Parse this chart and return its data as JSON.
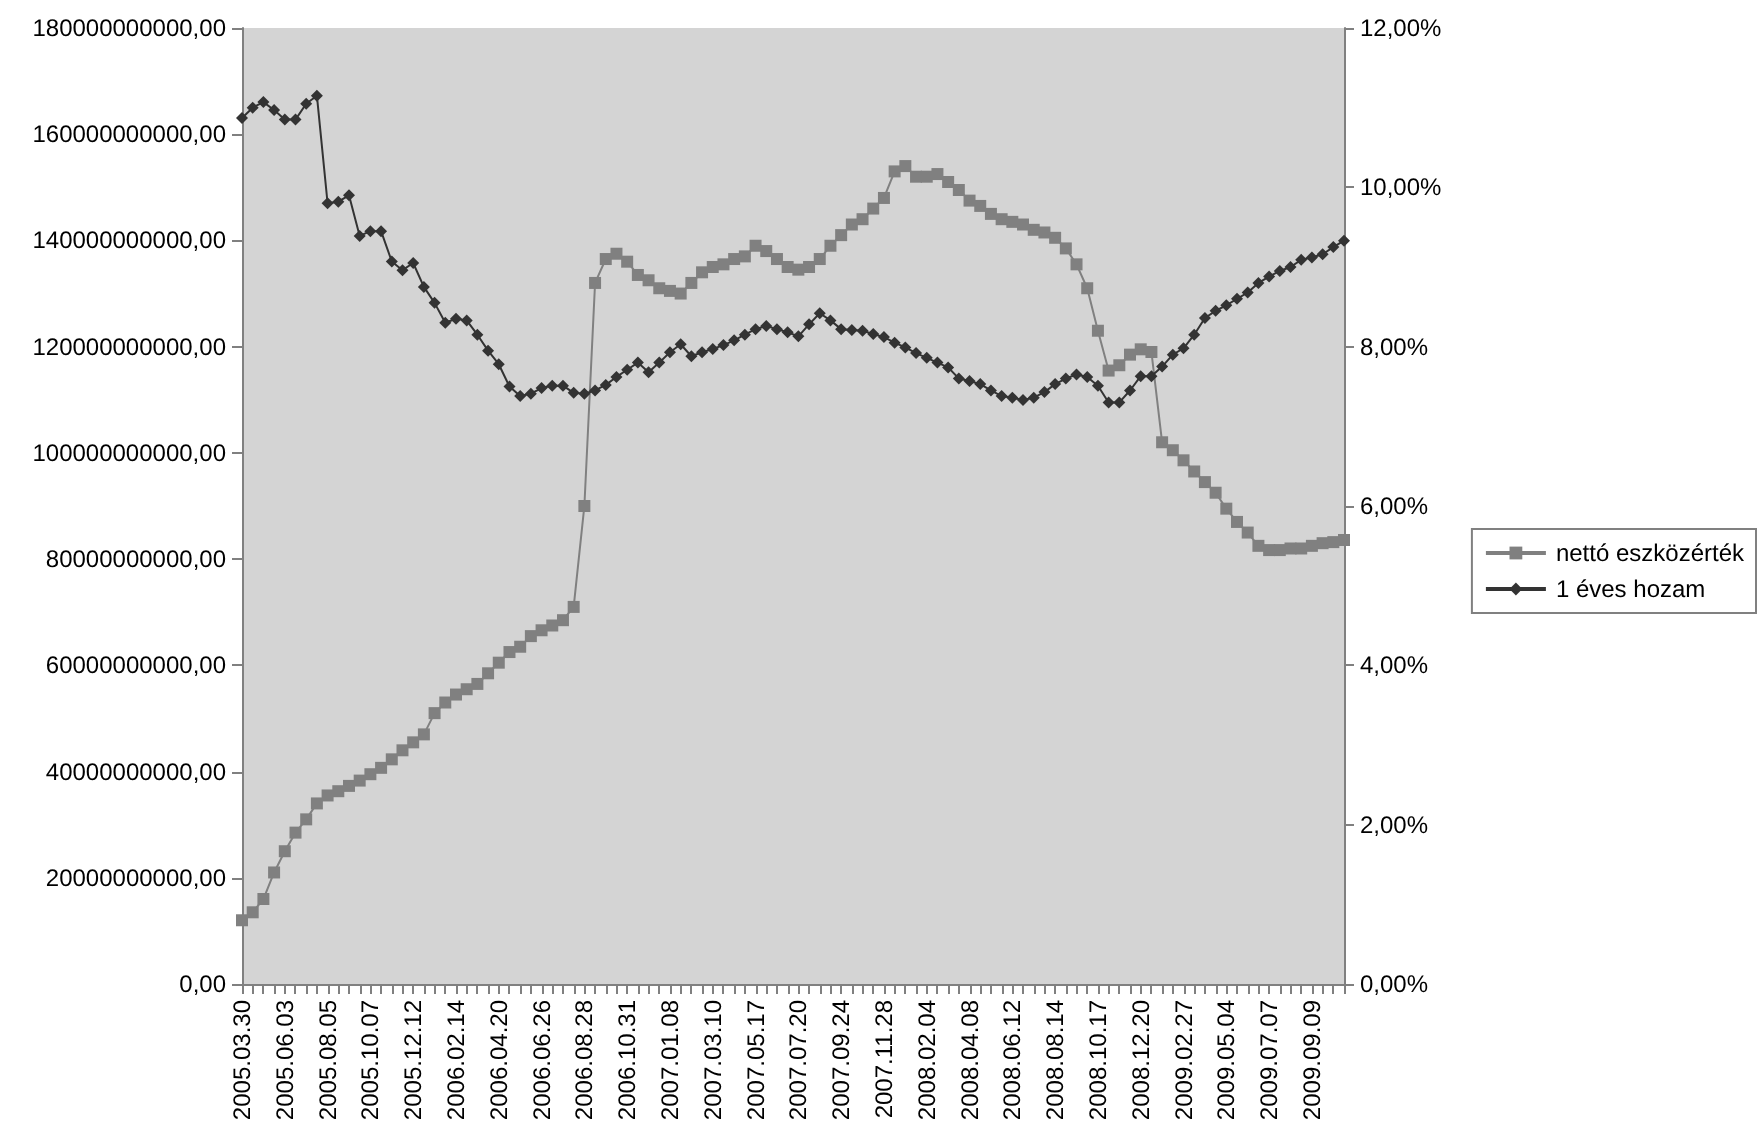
{
  "chart_data": {
    "type": "line",
    "categories": [
      "2005.03.30",
      null,
      null,
      null,
      "2005.06.03",
      null,
      null,
      null,
      "2005.08.05",
      null,
      null,
      null,
      "2005.10.07",
      null,
      null,
      null,
      "2005.12.12",
      null,
      null,
      null,
      "2006.02.14",
      null,
      null,
      null,
      "2006.04.20",
      null,
      null,
      null,
      "2006.06.26",
      null,
      null,
      null,
      "2006.08.28",
      null,
      null,
      null,
      "2006.10.31",
      null,
      null,
      null,
      "2007.01.08",
      null,
      null,
      null,
      "2007.03.10",
      null,
      null,
      null,
      "2007.05.17",
      null,
      null,
      null,
      "2007.07.20",
      null,
      null,
      null,
      "2007.09.24",
      null,
      null,
      null,
      "2007.11.28",
      null,
      null,
      null,
      "2008.02.04",
      null,
      null,
      null,
      "2008.04.08",
      null,
      null,
      null,
      "2008.06.12",
      null,
      null,
      null,
      "2008.08.14",
      null,
      null,
      null,
      "2008.10.17",
      null,
      null,
      null,
      "2008.12.20",
      null,
      null,
      null,
      "2009.02.27",
      null,
      null,
      null,
      "2009.05.04",
      null,
      null,
      null,
      "2009.07.07",
      null,
      null,
      null,
      "2009.09.09",
      null,
      null,
      null
    ],
    "series": [
      {
        "name": "nettó eszközérték",
        "color": "#808080",
        "marker": "square",
        "values": [
          12000000000,
          13500000000,
          16000000000,
          21000000000,
          25000000000,
          28500000000,
          31000000000,
          34000000000,
          35500000000,
          36300000000,
          37300000000,
          38300000000,
          39500000000,
          40700000000,
          42300000000,
          44000000000,
          45500000000,
          47000000000,
          51000000000,
          53000000000,
          54500000000,
          55500000000,
          56500000000,
          58500000000,
          60500000000,
          62500000000,
          63500000000,
          65500000000,
          66600000000,
          67500000000,
          68500000000,
          71000000000,
          90000000000,
          132000000000,
          136500000000,
          137500000000,
          136000000000,
          133500000000,
          132500000000,
          131000000000,
          130500000000,
          130000000000,
          132000000000,
          134000000000,
          135000000000,
          135500000000,
          136500000000,
          137000000000,
          139000000000,
          138000000000,
          136500000000,
          135000000000,
          134500000000,
          135000000000,
          136500000000,
          139000000000,
          141000000000,
          143000000000,
          144000000000,
          146000000000,
          148000000000,
          153000000000,
          154000000000,
          152000000000,
          152000000000,
          152500000000,
          151000000000,
          149500000000,
          147500000000,
          146500000000,
          145000000000,
          144000000000,
          143500000000,
          143000000000,
          142000000000,
          141500000000,
          140500000000,
          138500000000,
          135500000000,
          131000000000,
          123000000000,
          115500000000,
          116500000000,
          118500000000,
          119500000000,
          119000000000,
          102000000000,
          100500000000,
          98600000000,
          96500000000,
          94500000000,
          92500000000,
          89500000000,
          87000000000,
          85000000000,
          82500000000,
          81700000000,
          81700000000,
          82000000000,
          82000000000,
          82500000000,
          83000000000,
          83200000000,
          83600000000
        ]
      },
      {
        "name": "1 éves hozam",
        "color": "#333333",
        "marker": "diamond",
        "axis": "y2",
        "values": [
          10.87,
          11.0,
          11.07,
          10.97,
          10.85,
          10.85,
          11.05,
          11.15,
          9.8,
          9.82,
          9.9,
          9.39,
          9.45,
          9.45,
          9.07,
          8.96,
          9.05,
          8.75,
          8.55,
          8.3,
          8.35,
          8.33,
          8.15,
          7.95,
          7.78,
          7.5,
          7.38,
          7.41,
          7.48,
          7.51,
          7.51,
          7.42,
          7.41,
          7.45,
          7.52,
          7.62,
          7.71,
          7.8,
          7.68,
          7.8,
          7.93,
          8.03,
          7.88,
          7.93,
          7.97,
          8.02,
          8.08,
          8.15,
          8.22,
          8.26,
          8.22,
          8.18,
          8.13,
          8.28,
          8.42,
          8.33,
          8.22,
          8.21,
          8.2,
          8.16,
          8.12,
          8.05,
          7.99,
          7.92,
          7.86,
          7.8,
          7.74,
          7.6,
          7.57,
          7.53,
          7.45,
          7.38,
          7.36,
          7.33,
          7.36,
          7.43,
          7.53,
          7.6,
          7.65,
          7.62,
          7.51,
          7.3,
          7.3,
          7.45,
          7.63,
          7.63,
          7.75,
          7.9,
          7.98,
          8.15,
          8.36,
          8.45,
          8.52,
          8.6,
          8.68,
          8.8,
          8.88,
          8.95,
          9.0,
          9.09,
          9.12,
          9.16,
          9.25,
          9.33
        ]
      }
    ],
    "ylim": [
      0,
      180000000000
    ],
    "yticks": [
      {
        "value": 0,
        "label": "0,00"
      },
      {
        "value": 20000000000,
        "label": "20000000000,00"
      },
      {
        "value": 40000000000,
        "label": "40000000000,00"
      },
      {
        "value": 60000000000,
        "label": "60000000000,00"
      },
      {
        "value": 80000000000,
        "label": "80000000000,00"
      },
      {
        "value": 100000000000,
        "label": "100000000000,00"
      },
      {
        "value": 120000000000,
        "label": "120000000000,00"
      },
      {
        "value": 140000000000,
        "label": "140000000000,00"
      },
      {
        "value": 160000000000,
        "label": "160000000000,00"
      },
      {
        "value": 180000000000,
        "label": "180000000000,00"
      }
    ],
    "y2lim": [
      0,
      12
    ],
    "y2ticks": [
      {
        "value": 0,
        "label": "0,00%"
      },
      {
        "value": 2,
        "label": "2,00%"
      },
      {
        "value": 4,
        "label": "4,00%"
      },
      {
        "value": 6,
        "label": "6,00%"
      },
      {
        "value": 8,
        "label": "8,00%"
      },
      {
        "value": 10,
        "label": "10,00%"
      },
      {
        "value": 12,
        "label": "12,00%"
      }
    ],
    "legend": "right"
  }
}
